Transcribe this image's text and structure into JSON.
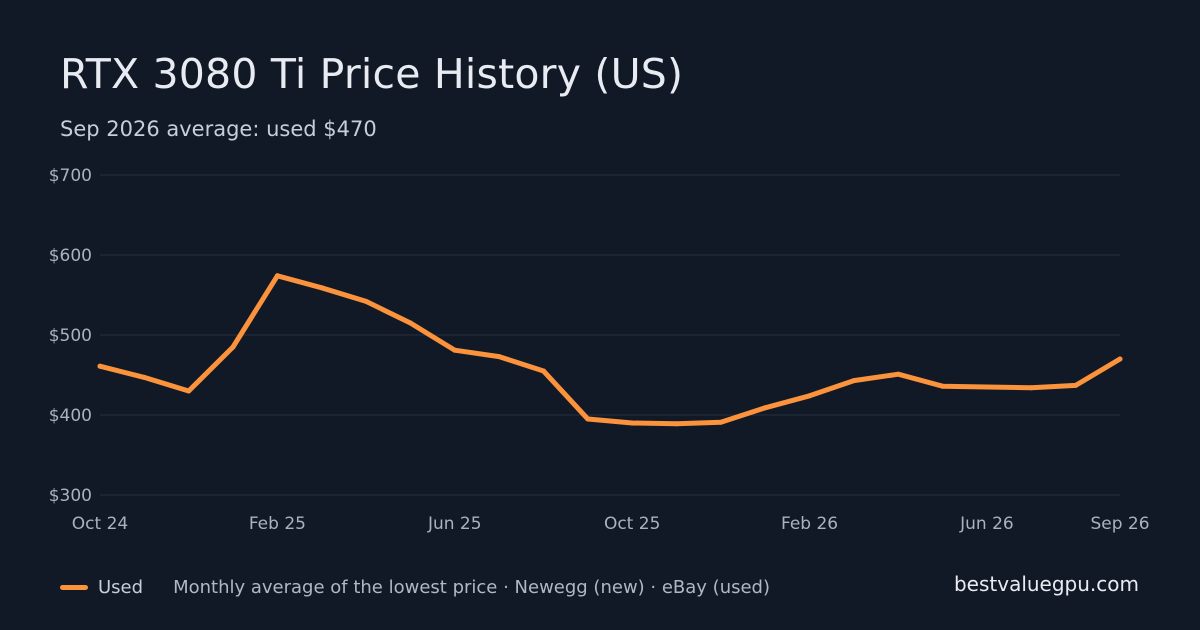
{
  "title": "RTX 3080 Ti Price History (US)",
  "subtitle": "Sep 2026 average: used $470",
  "legend": {
    "series_label": "Used",
    "note": "Monthly average of the lowest price · Newegg (new) · eBay (used)"
  },
  "brand": "bestvaluegpu.com",
  "colors": {
    "background": "#121926",
    "grid": "#273041",
    "tick_text": "#a8b2c0",
    "used": "#fb923c"
  },
  "chart_data": {
    "type": "line",
    "x": [
      "Oct 24",
      "Nov 24",
      "Dec 24",
      "Jan 25",
      "Feb 25",
      "Mar 25",
      "Apr 25",
      "May 25",
      "Jun 25",
      "Jul 25",
      "Aug 25",
      "Sep 25",
      "Oct 25",
      "Nov 25",
      "Dec 25",
      "Jan 26",
      "Feb 26",
      "Mar 26",
      "Apr 26",
      "May 26",
      "Jun 26",
      "Jul 26",
      "Aug 26",
      "Sep 26"
    ],
    "x_tick_labels": [
      "Oct 24",
      "Feb 25",
      "Jun 25",
      "Oct 25",
      "Feb 26",
      "Jun 26",
      "Sep 26"
    ],
    "series": [
      {
        "name": "Used",
        "values": [
          461,
          447,
          430,
          485,
          574,
          559,
          542,
          515,
          481,
          473,
          455,
          395,
          390,
          389,
          391,
          409,
          424,
          443,
          451,
          436,
          435,
          434,
          437,
          470
        ]
      }
    ],
    "y_ticks": [
      300,
      400,
      500,
      600,
      700
    ],
    "y_tick_labels": [
      "$300",
      "$400",
      "$500",
      "$600",
      "$700"
    ],
    "ylim": [
      300,
      700
    ],
    "grid": true,
    "legend_position": "bottom-left"
  }
}
